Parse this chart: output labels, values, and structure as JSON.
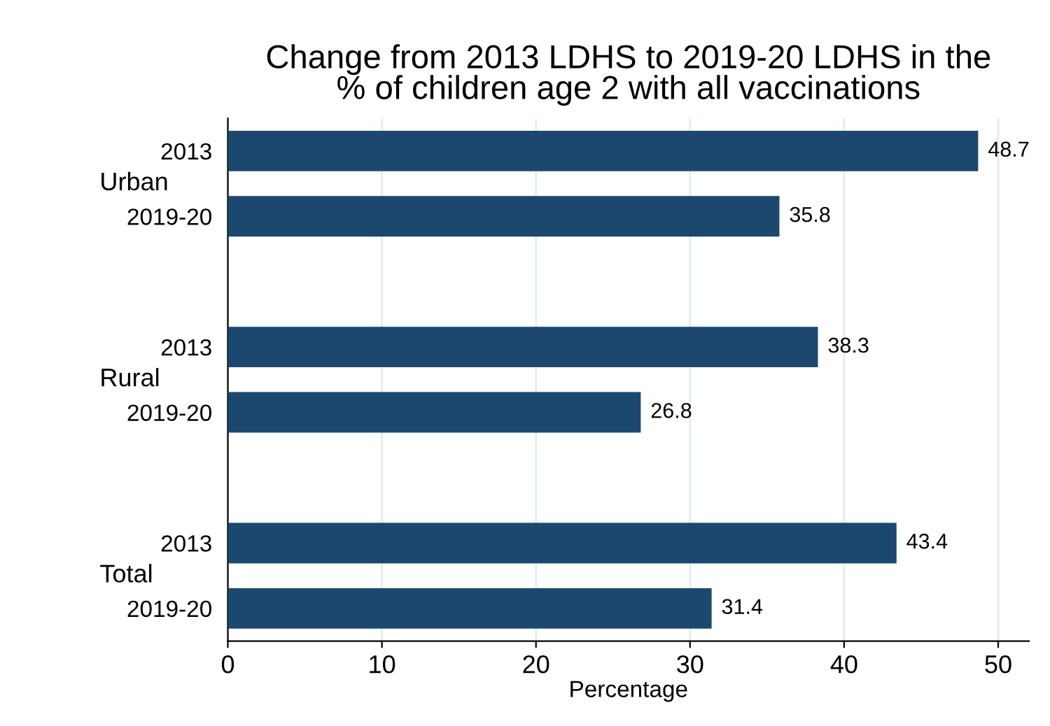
{
  "chart_data": {
    "type": "bar",
    "orientation": "horizontal",
    "title": "Change from 2013 LDHS to 2019-20 LDHS in the\n% of children age 2 with all vaccinations",
    "xlabel": "Percentage",
    "categories": [
      "2013",
      "2019-20",
      null,
      "2013",
      "2019-20",
      null,
      "2013",
      "2019-20"
    ],
    "values": [
      48.7,
      35.8,
      null,
      38.3,
      26.8,
      null,
      43.4,
      31.4
    ],
    "color": "#1c476f",
    "data_labels": true,
    "annotations": [
      "Urban",
      "Rural",
      "Total"
    ],
    "xlim": [
      0,
      52
    ],
    "xticks": [
      0,
      10,
      20,
      30,
      40,
      50
    ],
    "grid": "x"
  }
}
